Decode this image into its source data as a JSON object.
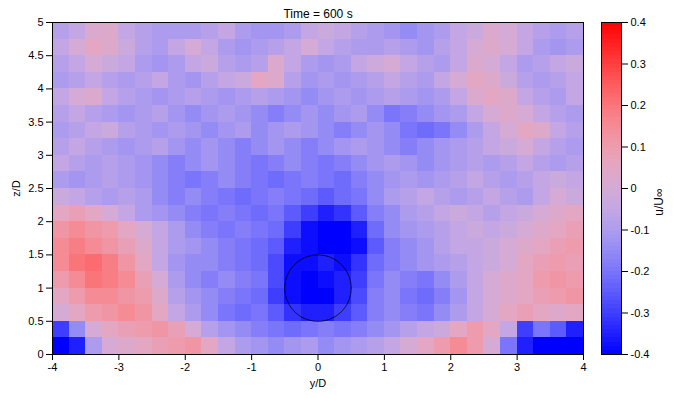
{
  "chart_data": {
    "type": "heatmap",
    "title": "Time = 600 s",
    "x_label": "y/D",
    "y_label": "z/D",
    "xlim": [
      -4,
      4
    ],
    "ylim": [
      0,
      5
    ],
    "xticks": [
      -4,
      -3,
      -2,
      -1,
      0,
      1,
      2,
      3,
      4
    ],
    "yticks": [
      0,
      0.5,
      1,
      1.5,
      2,
      2.5,
      3,
      3.5,
      4,
      4.5,
      5
    ],
    "cells": {
      "y_edges": [
        -4,
        -3.75,
        -3.5,
        -3.25,
        -3,
        -2.75,
        -2.5,
        -2.25,
        -2,
        -1.75,
        -1.5,
        -1.25,
        -1,
        -0.75,
        -0.5,
        -0.25,
        0,
        0.25,
        0.5,
        0.75,
        1,
        1.25,
        1.5,
        1.75,
        2,
        2.25,
        2.5,
        2.75,
        3,
        3.25,
        3.5,
        3.75,
        4
      ],
      "z_edges": [
        5,
        4.75,
        4.5,
        4.25,
        4,
        3.75,
        3.5,
        3.25,
        3,
        2.75,
        2.5,
        2.25,
        2,
        1.75,
        1.5,
        1.25,
        1,
        0.75,
        0.5,
        0.25,
        0
      ],
      "values": [
        [
          -0.08,
          -0.05,
          0.02,
          0.03,
          -0.05,
          -0.08,
          -0.1,
          -0.1,
          -0.1,
          -0.08,
          -0.05,
          -0.1,
          -0.12,
          -0.12,
          -0.1,
          -0.05,
          -0.03,
          -0.05,
          -0.08,
          -0.1,
          -0.12,
          -0.15,
          -0.12,
          -0.1,
          -0.05,
          -0.03,
          0.02,
          0.0,
          -0.05,
          -0.08,
          -0.1,
          -0.08
        ],
        [
          -0.05,
          0.0,
          0.05,
          0.03,
          -0.03,
          -0.08,
          -0.1,
          -0.05,
          0.0,
          -0.05,
          -0.1,
          -0.12,
          -0.1,
          -0.08,
          -0.05,
          0.0,
          -0.05,
          -0.08,
          -0.1,
          -0.1,
          -0.08,
          -0.1,
          -0.12,
          -0.08,
          -0.05,
          0.0,
          0.03,
          0.0,
          -0.05,
          -0.1,
          -0.12,
          -0.1
        ],
        [
          -0.08,
          -0.05,
          0.0,
          -0.03,
          -0.05,
          -0.1,
          -0.12,
          -0.1,
          -0.05,
          -0.03,
          -0.08,
          -0.1,
          -0.08,
          0.02,
          -0.05,
          -0.1,
          -0.12,
          -0.1,
          -0.05,
          -0.02,
          0.0,
          -0.05,
          -0.08,
          -0.1,
          -0.05,
          0.02,
          0.0,
          -0.05,
          -0.1,
          -0.08,
          -0.05,
          -0.03
        ],
        [
          -0.1,
          -0.08,
          -0.05,
          -0.08,
          -0.1,
          -0.08,
          -0.05,
          -0.1,
          -0.12,
          -0.08,
          -0.05,
          -0.03,
          0.05,
          0.03,
          -0.08,
          -0.12,
          -0.1,
          -0.12,
          -0.1,
          -0.08,
          -0.05,
          -0.08,
          -0.1,
          -0.05,
          0.0,
          0.05,
          0.03,
          -0.03,
          -0.08,
          -0.1,
          -0.08,
          -0.05
        ],
        [
          -0.05,
          0.0,
          0.02,
          -0.05,
          -0.08,
          -0.1,
          -0.12,
          -0.1,
          -0.08,
          -0.1,
          -0.12,
          -0.1,
          -0.08,
          -0.1,
          -0.12,
          -0.15,
          -0.12,
          -0.1,
          -0.12,
          -0.1,
          -0.08,
          -0.1,
          -0.12,
          -0.1,
          -0.05,
          0.02,
          0.05,
          0.03,
          -0.05,
          -0.08,
          -0.1,
          -0.05
        ],
        [
          -0.08,
          -0.05,
          -0.08,
          -0.1,
          -0.12,
          -0.1,
          -0.08,
          -0.12,
          -0.15,
          -0.12,
          -0.1,
          -0.12,
          -0.15,
          -0.18,
          -0.15,
          -0.12,
          -0.15,
          -0.12,
          -0.1,
          -0.15,
          -0.2,
          -0.18,
          -0.15,
          -0.12,
          -0.1,
          -0.05,
          0.0,
          0.03,
          0.0,
          -0.05,
          -0.08,
          -0.1
        ],
        [
          -0.1,
          -0.08,
          -0.05,
          -0.03,
          -0.08,
          -0.1,
          -0.12,
          -0.1,
          -0.12,
          -0.15,
          -0.12,
          -0.1,
          -0.15,
          -0.12,
          -0.1,
          -0.12,
          -0.15,
          -0.18,
          -0.15,
          -0.12,
          -0.15,
          -0.2,
          -0.22,
          -0.2,
          -0.15,
          -0.1,
          -0.05,
          0.0,
          0.05,
          0.03,
          -0.05,
          -0.08
        ],
        [
          -0.08,
          -0.05,
          -0.08,
          -0.1,
          -0.12,
          -0.1,
          -0.08,
          -0.12,
          -0.15,
          -0.12,
          -0.15,
          -0.18,
          -0.15,
          -0.12,
          -0.15,
          -0.18,
          -0.15,
          -0.12,
          -0.1,
          -0.12,
          -0.15,
          -0.18,
          -0.15,
          -0.12,
          -0.1,
          -0.08,
          -0.05,
          -0.03,
          0.0,
          -0.05,
          -0.08,
          -0.1
        ],
        [
          -0.05,
          -0.08,
          -0.1,
          -0.08,
          -0.1,
          -0.12,
          -0.15,
          -0.18,
          -0.15,
          -0.12,
          -0.15,
          -0.18,
          -0.2,
          -0.18,
          -0.15,
          -0.18,
          -0.2,
          -0.18,
          -0.15,
          -0.12,
          -0.1,
          -0.12,
          -0.15,
          -0.12,
          -0.1,
          -0.08,
          -0.1,
          -0.08,
          -0.05,
          -0.08,
          -0.1,
          -0.08
        ],
        [
          -0.1,
          -0.12,
          -0.1,
          -0.08,
          -0.1,
          -0.12,
          -0.15,
          -0.18,
          -0.2,
          -0.18,
          -0.15,
          -0.18,
          -0.2,
          -0.22,
          -0.2,
          -0.18,
          -0.2,
          -0.22,
          -0.18,
          -0.15,
          -0.12,
          -0.1,
          -0.12,
          -0.1,
          -0.08,
          -0.05,
          -0.08,
          -0.1,
          -0.08,
          -0.05,
          -0.03,
          -0.05
        ],
        [
          -0.03,
          -0.05,
          -0.08,
          -0.1,
          -0.08,
          -0.1,
          -0.15,
          -0.18,
          -0.15,
          -0.18,
          -0.2,
          -0.22,
          -0.2,
          -0.18,
          -0.2,
          -0.22,
          -0.25,
          -0.22,
          -0.2,
          -0.15,
          -0.1,
          -0.08,
          -0.05,
          -0.08,
          -0.1,
          -0.08,
          -0.05,
          -0.08,
          -0.1,
          -0.05,
          0.0,
          -0.03
        ],
        [
          0.05,
          0.08,
          0.05,
          0.0,
          -0.05,
          -0.1,
          -0.12,
          -0.15,
          -0.18,
          -0.2,
          -0.18,
          -0.2,
          -0.22,
          -0.2,
          -0.25,
          -0.3,
          -0.35,
          -0.32,
          -0.25,
          -0.18,
          -0.15,
          -0.1,
          -0.08,
          -0.05,
          -0.03,
          -0.05,
          -0.08,
          -0.05,
          -0.03,
          0.0,
          0.03,
          0.05
        ],
        [
          0.12,
          0.15,
          0.12,
          0.1,
          0.05,
          0.0,
          -0.05,
          -0.1,
          -0.15,
          -0.18,
          -0.2,
          -0.18,
          -0.2,
          -0.22,
          -0.3,
          -0.38,
          -0.4,
          -0.4,
          -0.35,
          -0.22,
          -0.15,
          -0.12,
          -0.1,
          -0.08,
          -0.05,
          -0.03,
          -0.05,
          -0.03,
          0.0,
          0.03,
          0.05,
          0.08
        ],
        [
          0.15,
          0.18,
          0.15,
          0.12,
          0.08,
          0.03,
          -0.05,
          -0.1,
          -0.12,
          -0.15,
          -0.18,
          -0.2,
          -0.22,
          -0.25,
          -0.35,
          -0.38,
          -0.4,
          -0.4,
          -0.38,
          -0.25,
          -0.18,
          -0.15,
          -0.12,
          -0.08,
          -0.05,
          -0.05,
          -0.03,
          0.0,
          0.03,
          0.05,
          0.08,
          0.1
        ],
        [
          0.15,
          0.2,
          0.22,
          0.18,
          0.12,
          0.05,
          -0.05,
          -0.12,
          -0.15,
          -0.15,
          -0.18,
          -0.2,
          -0.22,
          -0.28,
          -0.38,
          -0.38,
          -0.35,
          -0.38,
          -0.32,
          -0.22,
          -0.18,
          -0.15,
          -0.12,
          -0.1,
          -0.08,
          -0.05,
          -0.03,
          0.0,
          0.05,
          0.08,
          0.1,
          0.08
        ],
        [
          0.1,
          0.15,
          0.2,
          0.18,
          0.15,
          0.08,
          0.0,
          -0.1,
          -0.15,
          -0.18,
          -0.15,
          -0.18,
          -0.2,
          -0.28,
          -0.38,
          -0.4,
          -0.38,
          -0.35,
          -0.3,
          -0.2,
          -0.15,
          -0.18,
          -0.2,
          -0.15,
          -0.1,
          -0.05,
          0.0,
          0.03,
          0.05,
          0.1,
          0.12,
          0.1
        ],
        [
          0.05,
          0.1,
          0.15,
          0.15,
          0.12,
          0.1,
          0.03,
          -0.08,
          -0.12,
          -0.15,
          -0.18,
          -0.2,
          -0.22,
          -0.3,
          -0.38,
          -0.4,
          -0.4,
          -0.35,
          -0.28,
          -0.18,
          -0.15,
          -0.2,
          -0.22,
          -0.18,
          -0.12,
          -0.05,
          0.0,
          0.03,
          0.05,
          0.08,
          0.1,
          0.12
        ],
        [
          0.0,
          0.05,
          0.1,
          0.12,
          0.15,
          0.12,
          0.05,
          -0.05,
          -0.1,
          -0.15,
          -0.2,
          -0.22,
          -0.2,
          -0.25,
          -0.32,
          -0.35,
          -0.35,
          -0.3,
          -0.25,
          -0.18,
          -0.15,
          -0.18,
          -0.2,
          -0.15,
          -0.1,
          -0.05,
          0.0,
          0.05,
          0.08,
          0.05,
          0.03,
          0.05
        ],
        [
          -0.3,
          -0.15,
          0.0,
          0.05,
          0.08,
          0.1,
          0.12,
          0.08,
          0.0,
          -0.08,
          -0.12,
          -0.15,
          -0.18,
          -0.2,
          -0.22,
          -0.2,
          -0.18,
          -0.2,
          -0.18,
          -0.15,
          -0.12,
          -0.08,
          -0.05,
          -0.03,
          0.05,
          0.1,
          0.05,
          -0.05,
          -0.3,
          -0.2,
          -0.25,
          -0.35
        ],
        [
          -0.4,
          -0.35,
          -0.1,
          0.0,
          0.03,
          0.05,
          0.08,
          0.1,
          0.12,
          0.05,
          -0.05,
          -0.1,
          -0.12,
          -0.15,
          -0.12,
          -0.1,
          -0.15,
          -0.12,
          -0.1,
          -0.08,
          -0.05,
          0.0,
          0.05,
          0.1,
          0.15,
          0.1,
          0.0,
          -0.2,
          -0.35,
          -0.4,
          -0.4,
          -0.4
        ]
      ]
    },
    "colorbar": {
      "label": "u/U∞",
      "range": [
        -0.4,
        0.4
      ],
      "ticks": [
        -0.4,
        -0.3,
        -0.2,
        -0.1,
        0,
        0.1,
        0.2,
        0.3,
        0.4
      ]
    },
    "circle": {
      "y": 0,
      "z": 1,
      "r": 0.5
    }
  }
}
